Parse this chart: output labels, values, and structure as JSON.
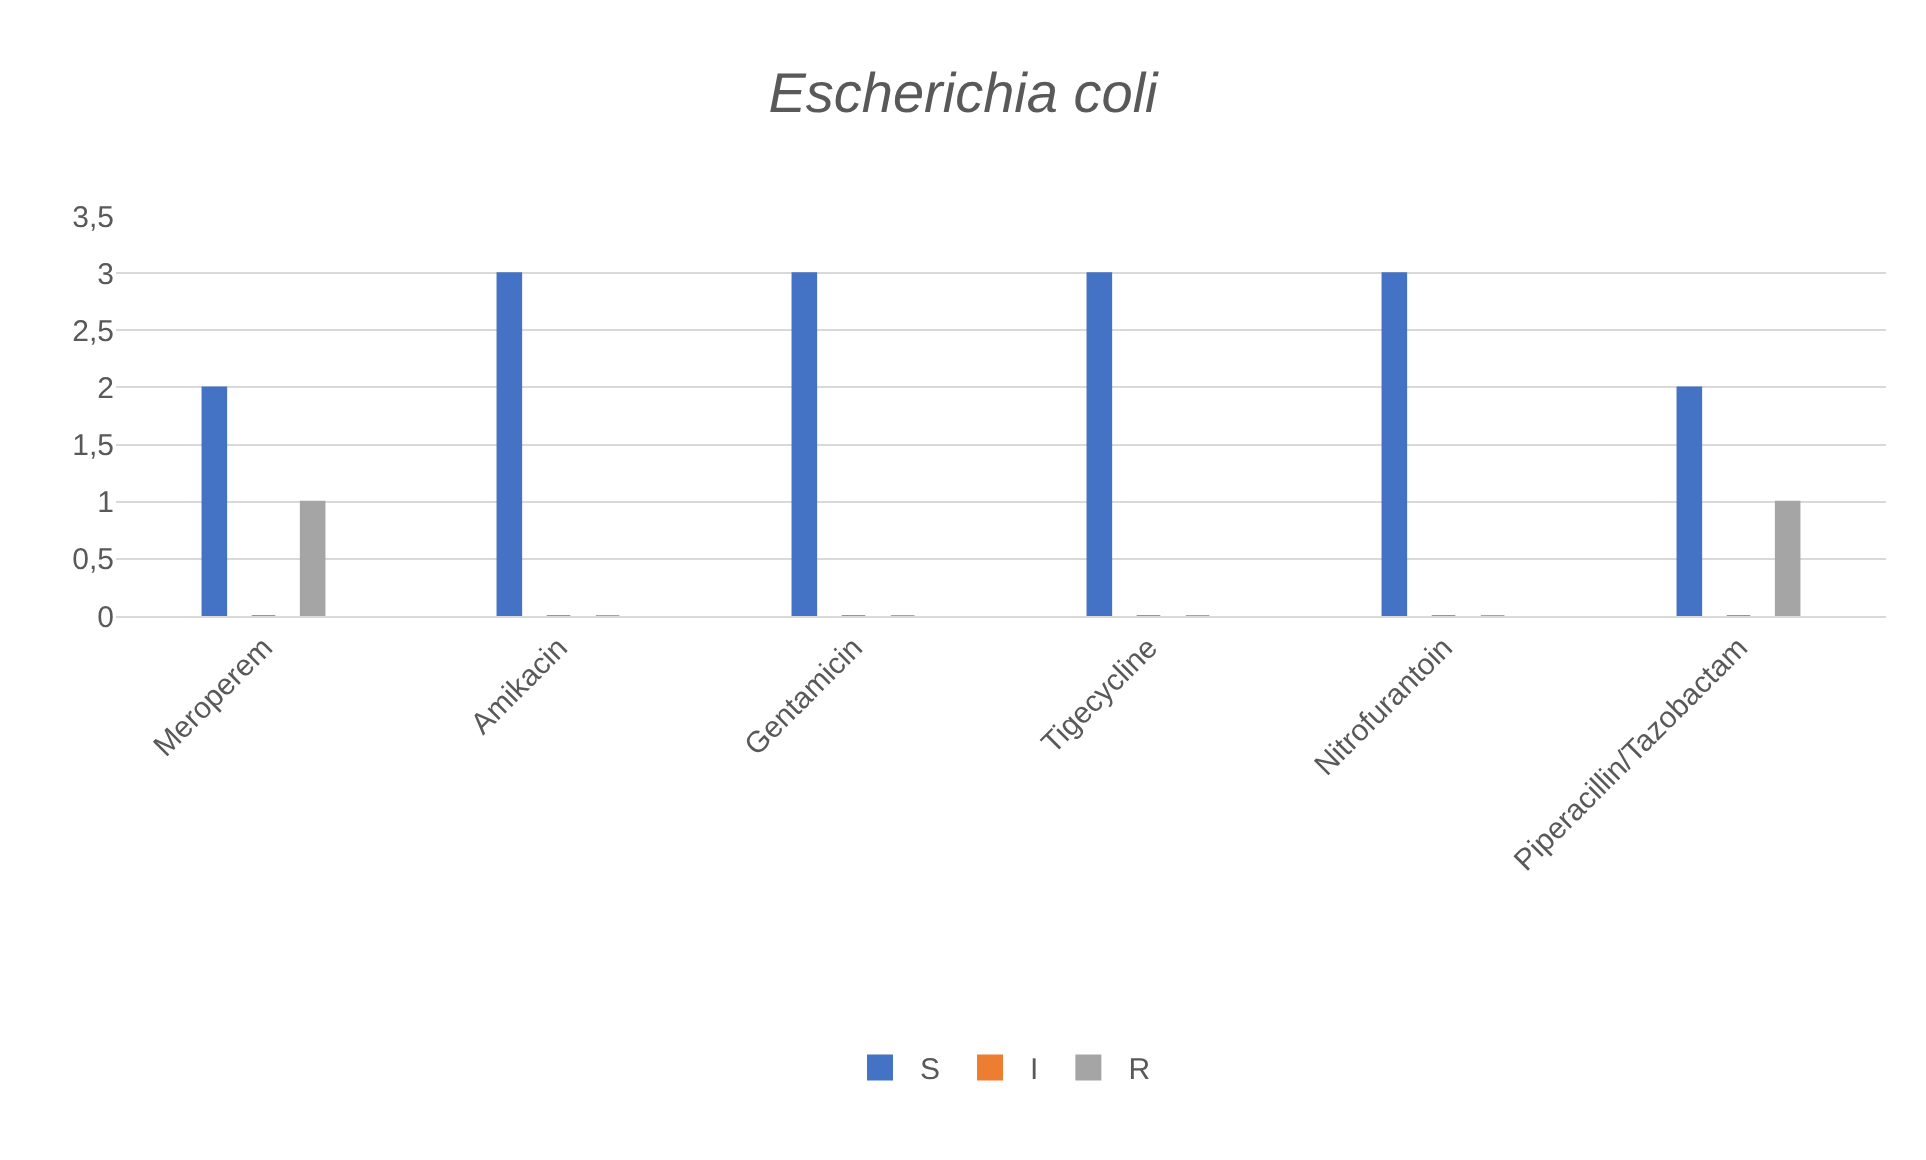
{
  "chart_data": {
    "type": "bar",
    "title": "Escherichia coli",
    "categories": [
      "Meroperem",
      "Amikacin",
      "Gentamicin",
      "Tigecycline",
      "Nitrofurantoin",
      "Piperacillin/Tazobactam"
    ],
    "series": [
      {
        "name": "S",
        "color": "#4472c4",
        "values": [
          2,
          3,
          3,
          3,
          3,
          2
        ]
      },
      {
        "name": "I",
        "color": "#ed7d31",
        "values": [
          0,
          0,
          0,
          0,
          0,
          0
        ]
      },
      {
        "name": "R",
        "color": "#a5a5a5",
        "values": [
          1,
          0,
          0,
          0,
          0,
          1
        ]
      }
    ],
    "ylim": [
      0,
      3.5
    ],
    "yticks": [
      0,
      {
        "value": 0.5,
        "label": "0,5"
      },
      1,
      {
        "value": 1.5,
        "label": "1,5"
      },
      2,
      {
        "value": 2.5,
        "label": "2,5"
      },
      3,
      {
        "value": 3.5,
        "label": "3,5"
      }
    ],
    "grid": "y",
    "legend": "bottom"
  }
}
